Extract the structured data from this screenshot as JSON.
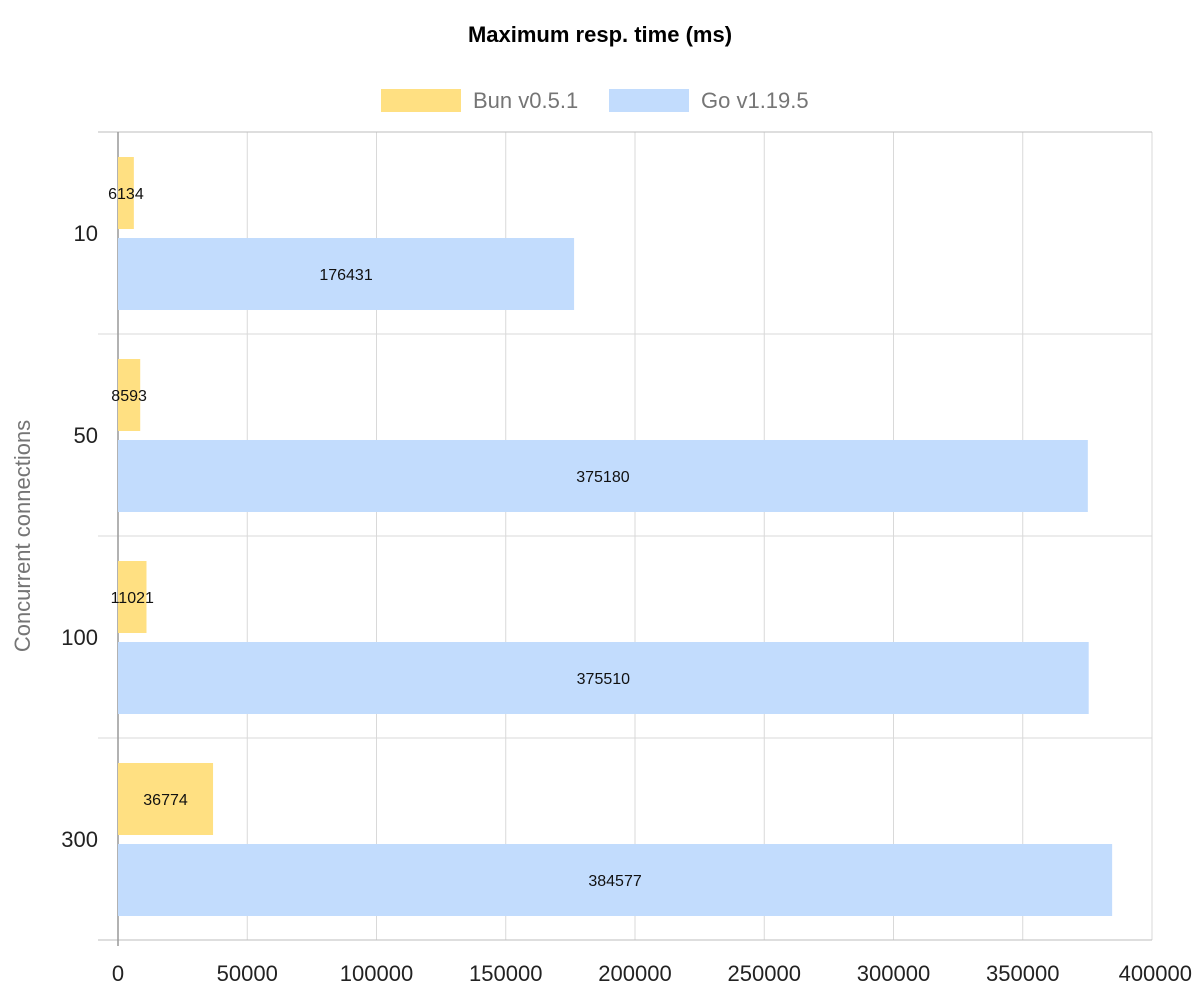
{
  "chart_data": {
    "type": "bar",
    "orientation": "horizontal",
    "title": "Maximum resp. time (ms)",
    "ylabel": "Concurrent connections",
    "xlabel": "",
    "categories": [
      "10",
      "50",
      "100",
      "300"
    ],
    "series": [
      {
        "name": "Bun v0.5.1",
        "color": "#FFE082",
        "values": [
          6134,
          8593,
          11021,
          36774
        ]
      },
      {
        "name": "Go v1.19.5",
        "color": "#C2DCFD",
        "values": [
          176431,
          375180,
          375510,
          384577
        ]
      }
    ],
    "xlim": [
      0,
      400000
    ],
    "xticks": [
      "0",
      "50000",
      "100000",
      "150000",
      "200000",
      "250000",
      "300000",
      "350000",
      "400000"
    ],
    "grid": true,
    "legend_position": "top",
    "data_labels": true
  }
}
